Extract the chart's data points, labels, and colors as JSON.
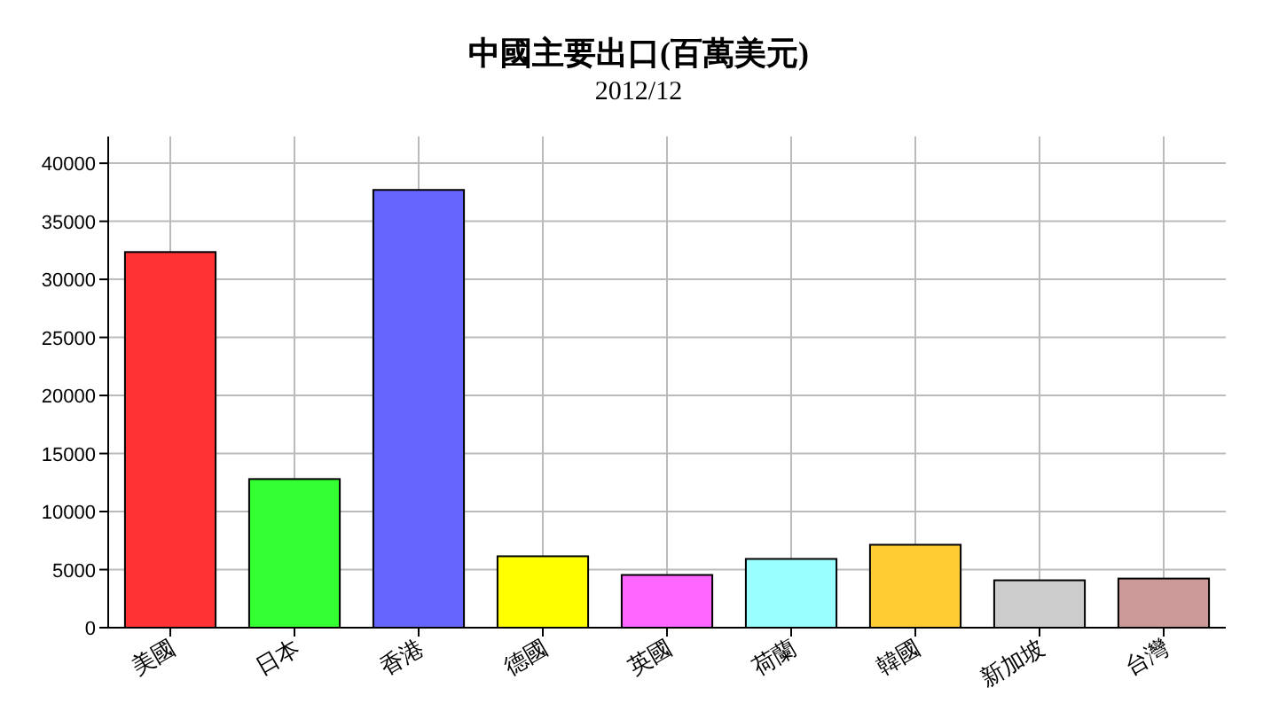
{
  "chart_data": {
    "type": "bar",
    "title": "中國主要出口(百萬美元)",
    "subtitle": "2012/12",
    "categories": [
      "美國",
      "日本",
      "香港",
      "德國",
      "英國",
      "荷蘭",
      "韓國",
      "新加坡",
      "台灣"
    ],
    "values": [
      32350,
      12800,
      37700,
      6150,
      4540,
      5920,
      7140,
      4080,
      4230
    ],
    "colors": [
      "#ff3333",
      "#33ff33",
      "#6666ff",
      "#ffff00",
      "#ff66ff",
      "#99ffff",
      "#ffcc33",
      "#cccccc",
      "#cc9999"
    ],
    "ylim": [
      0,
      42300
    ],
    "yticks": [
      0,
      5000,
      10000,
      15000,
      20000,
      25000,
      30000,
      35000,
      40000
    ],
    "grid": true
  }
}
